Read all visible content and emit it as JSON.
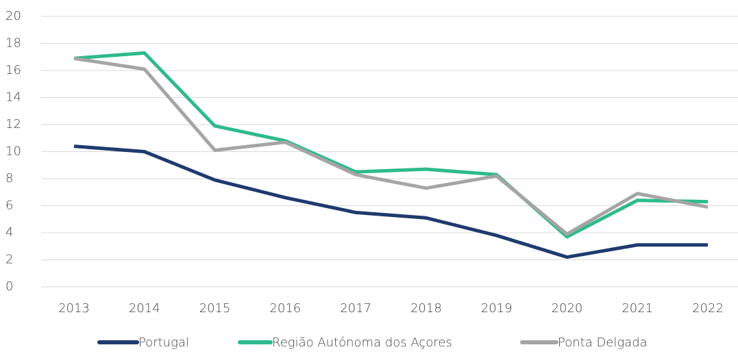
{
  "chart_data": {
    "type": "line",
    "categories": [
      "2013",
      "2014",
      "2015",
      "2016",
      "2017",
      "2018",
      "2019",
      "2020",
      "2021",
      "2022"
    ],
    "series": [
      {
        "name": "Portugal",
        "color": "#1f3a6e",
        "values": [
          10.4,
          10.0,
          7.9,
          6.6,
          5.5,
          5.1,
          3.8,
          2.2,
          3.1,
          3.1
        ]
      },
      {
        "name": "Região Autónoma dos Açores",
        "color": "#2dbb8a",
        "values": [
          16.9,
          17.3,
          11.9,
          10.8,
          8.5,
          8.7,
          8.3,
          3.7,
          6.4,
          6.3
        ]
      },
      {
        "name": "Ponta Delgada",
        "color": "#a5a5a5",
        "values": [
          16.9,
          16.1,
          10.1,
          10.7,
          8.3,
          7.3,
          8.2,
          3.9,
          6.9,
          5.9
        ]
      }
    ],
    "ylim": [
      0,
      20
    ],
    "yticks": [
      0,
      2,
      4,
      6,
      8,
      10,
      12,
      14,
      16,
      18,
      20
    ],
    "grid": true,
    "legend": "bottom"
  }
}
